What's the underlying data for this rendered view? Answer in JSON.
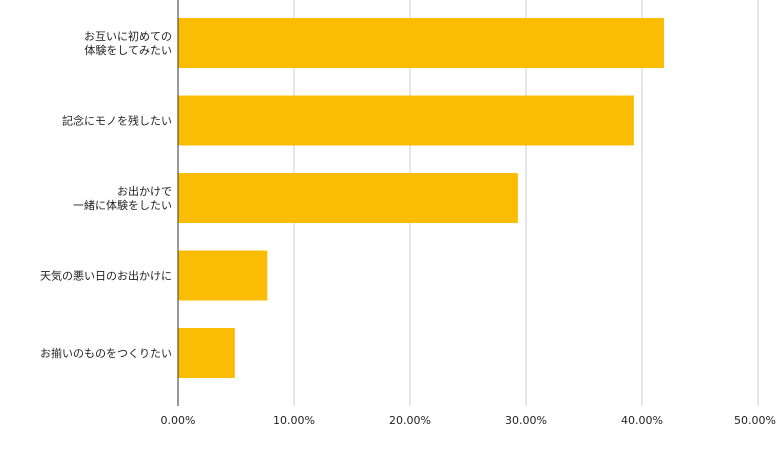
{
  "chart_data": {
    "type": "bar",
    "orientation": "horizontal",
    "categories": [
      [
        "お互いに初めての",
        "体験をしてみたい"
      ],
      [
        "記念にモノを残したい"
      ],
      [
        "お出かけで",
        "一緒に体験をしたい"
      ],
      [
        "天気の悪い日のお出かけに"
      ],
      [
        "お揃いのものをつくりたい"
      ]
    ],
    "values": [
      41.9,
      39.3,
      29.3,
      7.7,
      4.9
    ],
    "unit": "%",
    "xlim": [
      0,
      50
    ],
    "xticks": [
      "0.00%",
      "10.00%",
      "20.00%",
      "30.00%",
      "40.00%",
      "50.00%"
    ],
    "grid": true,
    "bar_color": "#FBBC04",
    "grid_color": "#CCCCCC",
    "axis_color": "#333333"
  }
}
